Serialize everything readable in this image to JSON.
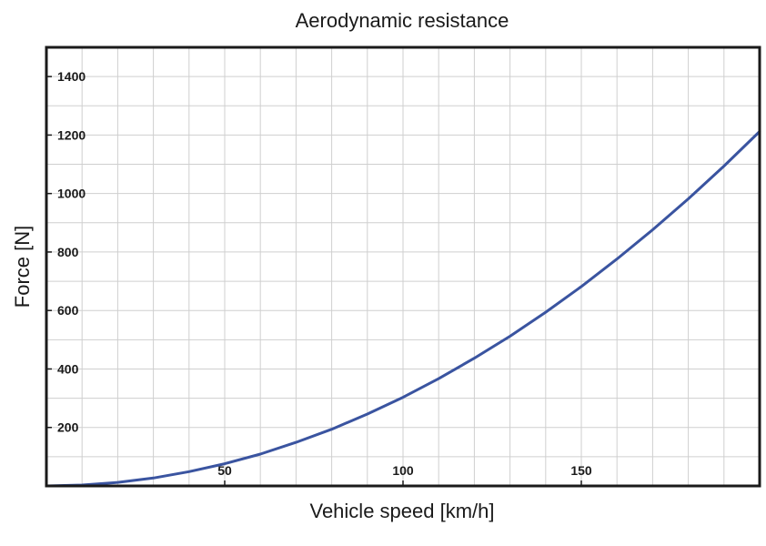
{
  "chart_data": {
    "type": "line",
    "title": "Aerodynamic resistance",
    "xlabel": "Vehicle speed [km/h]",
    "ylabel": "Force [N]",
    "xlim": [
      0,
      200
    ],
    "ylim": [
      0,
      1500
    ],
    "x_ticks": [
      50,
      100,
      150
    ],
    "y_ticks": [
      200,
      400,
      600,
      800,
      1000,
      1200,
      1400
    ],
    "x_grid_step": 10,
    "y_grid_step": 100,
    "grid": true,
    "series": [
      {
        "color": "#3a54a0",
        "x": [
          0,
          10,
          20,
          30,
          40,
          50,
          60,
          70,
          80,
          90,
          100,
          110,
          120,
          130,
          140,
          150,
          160,
          170,
          180,
          190,
          200
        ],
        "y": [
          0,
          3,
          12,
          27,
          49,
          76,
          109,
          149,
          194,
          246,
          303,
          367,
          437,
          512,
          594,
          682,
          776,
          876,
          982,
          1094,
          1212
        ]
      }
    ]
  }
}
